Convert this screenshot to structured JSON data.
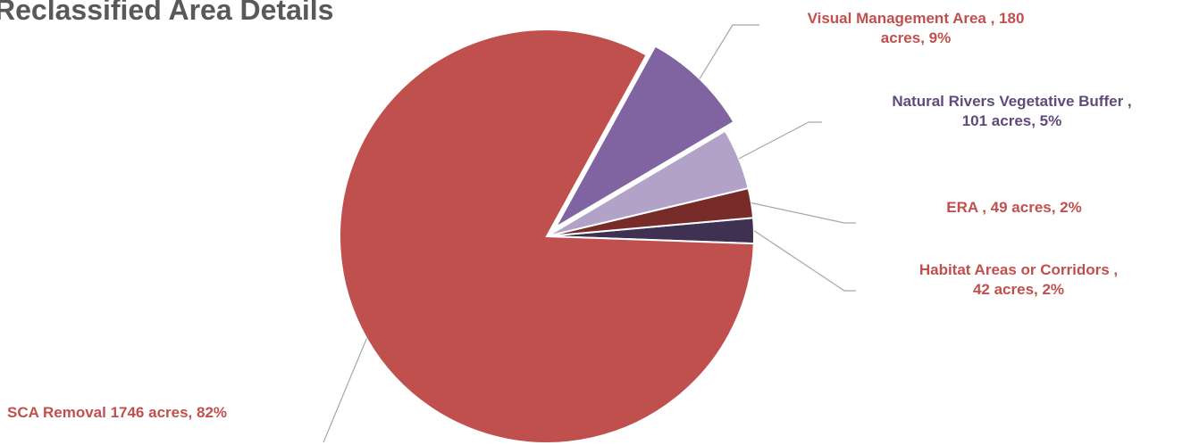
{
  "chart_data": {
    "type": "pie",
    "title": "Reclassified Area Details",
    "slices": [
      {
        "label": "SCA Removal",
        "acres": 1746,
        "percent": 82,
        "color": "#C0504D",
        "label_lines": [
          "SCA Removal 1746 acres, 82%"
        ]
      },
      {
        "label": "Visual Management Area",
        "acres": 180,
        "percent": 9,
        "color": "#8064A2",
        "label_lines": [
          "Visual Management Area , 180",
          "acres, 9%"
        ]
      },
      {
        "label": "Natural Rivers Vegetative Buffer",
        "acres": 101,
        "percent": 5,
        "color": "#B3A2C7",
        "label_lines": [
          "Natural Rivers Vegetative Buffer ,",
          "101 acres, 5%"
        ]
      },
      {
        "label": "ERA",
        "acres": 49,
        "percent": 2,
        "color": "#772C2A",
        "label_lines": [
          "ERA , 49 acres, 2%"
        ]
      },
      {
        "label": "Habitat Areas or Corridors",
        "acres": 42,
        "percent": 2,
        "color": "#3F3151",
        "label_lines": [
          "Habitat Areas or Corridors ,",
          "42 acres, 2%"
        ]
      }
    ],
    "label_colors": {
      "SCA Removal": "#C0504D",
      "Visual Management Area": "#C0504D",
      "Natural Rivers Vegetative Buffer": "#604A7B",
      "ERA": "#C0504D",
      "Habitat Areas or Corridors": "#C0504D"
    },
    "leader_line_color": "#A6A6A6",
    "exploded_slice": "Visual Management Area"
  }
}
